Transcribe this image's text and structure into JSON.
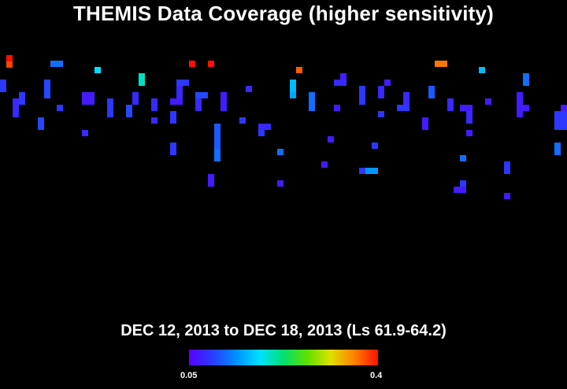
{
  "title": "THEMIS Data Coverage (higher sensitivity)",
  "subtitle": "DEC 12, 2013 to DEC 18, 2013 (Ls 61.9-64.2)",
  "colorbar": {
    "min_label": "0.05",
    "max_label": "0.4",
    "min_value": 0.05,
    "max_value": 0.4,
    "colors": [
      "#5a00ff",
      "#2a3cff",
      "#0090ff",
      "#00e0ff",
      "#00e070",
      "#60e000",
      "#e0e000",
      "#ff8000",
      "#ff1000"
    ]
  },
  "coverage_cells": [
    {
      "value": 0.4
    },
    {
      "value": 0.38
    },
    {
      "value": 0.12
    },
    {
      "value": 0.18
    },
    {
      "value": 0.4
    },
    {
      "value": 0.4
    },
    {
      "value": 0.3
    },
    {
      "value": 0.2
    },
    {
      "value": 0.09
    },
    {
      "value": 0.1
    },
    {
      "value": 0.08
    },
    {
      "value": 0.09
    },
    {
      "value": 0.07
    },
    {
      "value": 0.09
    },
    {
      "value": 0.08
    },
    {
      "value": 0.1
    },
    {
      "value": 0.36
    },
    {
      "value": 0.4
    },
    {
      "value": 0.16
    },
    {
      "value": 0.15
    },
    {
      "value": 0.09
    },
    {
      "value": 0.08
    },
    {
      "value": 0.1
    },
    {
      "value": 0.08
    },
    {
      "value": 0.07
    },
    {
      "value": 0.11
    },
    {
      "value": 0.12
    },
    {
      "value": 0.08
    },
    {
      "value": 0.09
    },
    {
      "value": 0.37
    },
    {
      "value": 0.08
    },
    {
      "value": 0.09
    },
    {
      "value": 0.08
    },
    {
      "value": 0.07
    },
    {
      "value": 0.09
    },
    {
      "value": 0.1
    },
    {
      "value": 0.14
    },
    {
      "value": 0.08
    },
    {
      "value": 0.09
    },
    {
      "value": 0.08
    },
    {
      "value": 0.16
    },
    {
      "value": 0.08
    },
    {
      "value": 0.07
    },
    {
      "value": 0.09
    },
    {
      "value": 0.08
    },
    {
      "value": 0.07
    },
    {
      "value": 0.08
    },
    {
      "value": 0.09
    },
    {
      "value": 0.11
    },
    {
      "value": 0.08
    },
    {
      "value": 0.07
    },
    {
      "value": 0.08
    }
  ]
}
